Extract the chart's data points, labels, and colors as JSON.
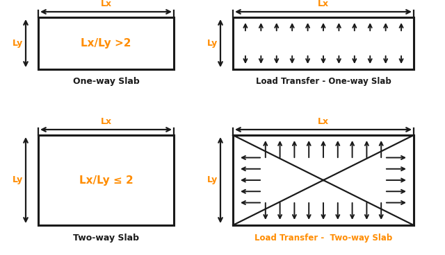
{
  "bg_color": "#ffffff",
  "black": "#1a1a1a",
  "orange": "#FF8C00",
  "one_way_label": "Lx/Ly >2",
  "two_way_label": "Lx/Ly ≤ 2",
  "one_way_title": "One-way Slab",
  "two_way_title": "Two-way Slab",
  "load_one_title": "Load Transfer - One-way Slab",
  "load_two_title": "Load Transfer -  Two-way Slab",
  "Lx_label": "Lx",
  "Ly_label": "Ly",
  "figw": 6.4,
  "figh": 3.68,
  "dpi": 100
}
